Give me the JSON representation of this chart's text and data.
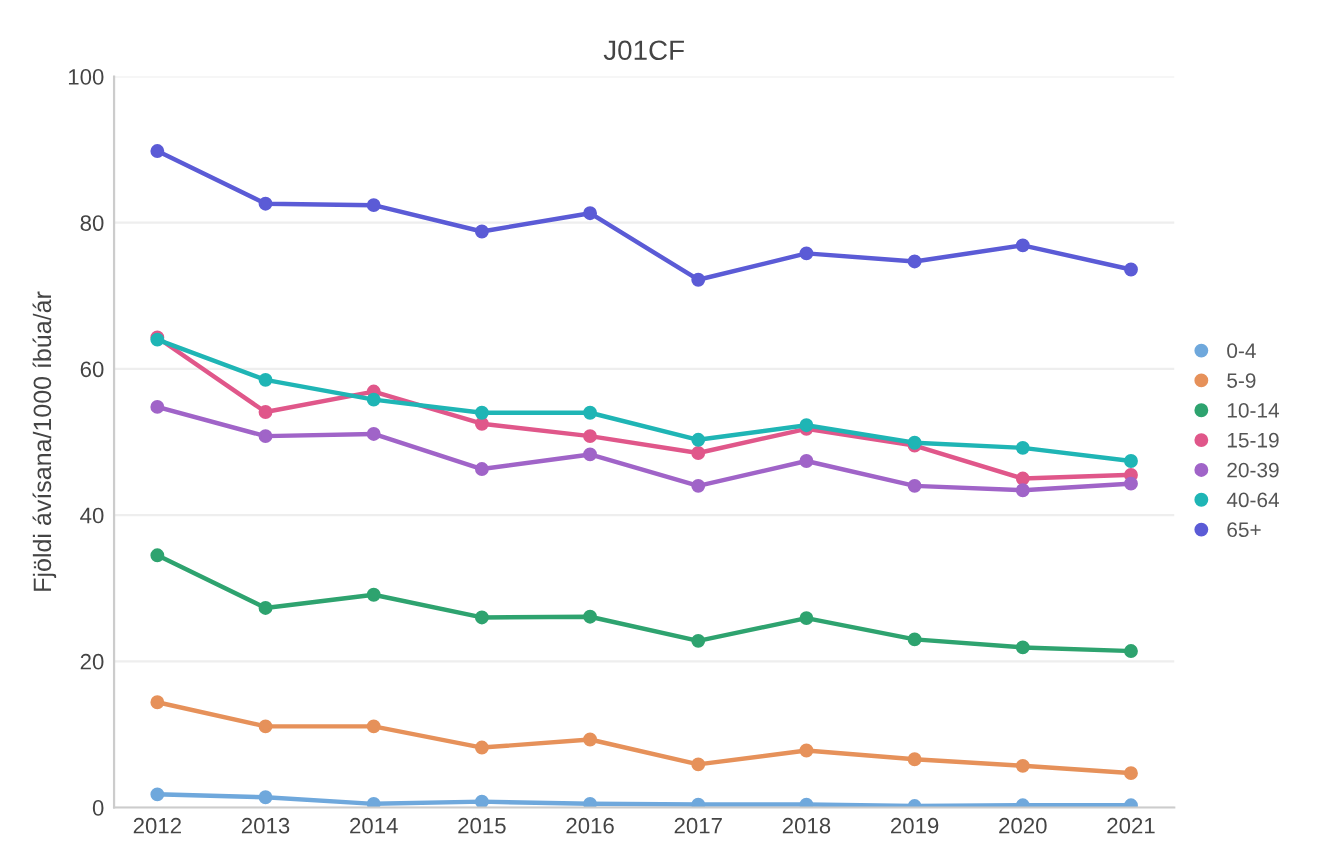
{
  "chart_data": {
    "type": "line",
    "title": "J01CF",
    "ylabel": "Fjöldi ávísana/1000 íbúa/ár",
    "categories": [
      "2012",
      "2013",
      "2014",
      "2015",
      "2016",
      "2017",
      "2018",
      "2019",
      "2020",
      "2021"
    ],
    "series": [
      {
        "name": "0-4",
        "color": "#6fa8dc",
        "values": [
          1.8,
          1.4,
          0.5,
          0.8,
          0.5,
          0.4,
          0.4,
          0.2,
          0.3,
          0.3
        ]
      },
      {
        "name": "5-9",
        "color": "#e6915a",
        "values": [
          14.4,
          11.1,
          11.1,
          8.2,
          9.3,
          5.9,
          7.8,
          6.6,
          5.7,
          4.7
        ]
      },
      {
        "name": "10-14",
        "color": "#2ea36f",
        "values": [
          34.5,
          27.3,
          29.1,
          26.0,
          26.1,
          22.8,
          25.9,
          23.0,
          21.9,
          21.4
        ]
      },
      {
        "name": "15-19",
        "color": "#e0578a",
        "values": [
          64.3,
          54.1,
          56.9,
          52.5,
          50.8,
          48.5,
          51.8,
          49.5,
          45.0,
          45.5
        ]
      },
      {
        "name": "20-39",
        "color": "#a064c8",
        "values": [
          54.8,
          50.8,
          51.1,
          46.3,
          48.3,
          44.0,
          47.4,
          44.0,
          43.4,
          44.3
        ]
      },
      {
        "name": "40-64",
        "color": "#1fb5b5",
        "values": [
          64.0,
          58.5,
          55.8,
          54.0,
          54.0,
          50.3,
          52.3,
          49.9,
          49.2,
          47.4
        ]
      },
      {
        "name": "65+",
        "color": "#5b5bd6",
        "values": [
          89.8,
          82.6,
          82.4,
          78.8,
          81.3,
          72.2,
          75.8,
          74.7,
          76.9,
          73.6
        ]
      }
    ],
    "ylim": [
      0,
      100
    ],
    "yticks": [
      0,
      20,
      40,
      60,
      80,
      100
    ],
    "grid": "y",
    "legend": "right",
    "marker": "circle",
    "line_style": "solid"
  }
}
